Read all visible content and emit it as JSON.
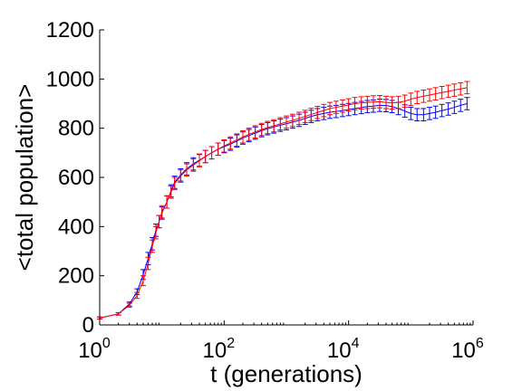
{
  "chart_data": {
    "type": "line",
    "xlabel": "t (generations)",
    "ylabel": "<total population>",
    "xscale": "log",
    "xlim_exponents": [
      0,
      6
    ],
    "ylim": [
      0,
      1200
    ],
    "x_ticks": [
      {
        "base": "10",
        "exp": "0",
        "value": 1
      },
      {
        "base": "10",
        "exp": "2",
        "value": 100
      },
      {
        "base": "10",
        "exp": "4",
        "value": 10000
      },
      {
        "base": "10",
        "exp": "6",
        "value": 1000000
      }
    ],
    "y_ticks": [
      {
        "label": "0",
        "value": 0
      },
      {
        "label": "200",
        "value": 200
      },
      {
        "label": "400",
        "value": 400
      },
      {
        "label": "600",
        "value": 600
      },
      {
        "label": "800",
        "value": 800
      },
      {
        "label": "1000",
        "value": 1000
      },
      {
        "label": "1200",
        "value": 1200
      }
    ],
    "grid": false,
    "legend": "none",
    "series": [
      {
        "color": "#0000ff",
        "x": [
          1,
          2,
          3,
          4,
          5,
          6,
          7,
          8,
          9,
          10,
          12,
          14,
          16,
          20,
          25,
          32,
          40,
          50,
          63,
          80,
          100,
          126,
          160,
          200,
          250,
          316,
          400,
          500,
          630,
          800,
          1000,
          1260,
          1600,
          2000,
          2500,
          3160,
          4000,
          5000,
          6300,
          8000,
          10000,
          12600,
          16000,
          20000,
          25000,
          31600,
          40000,
          50000,
          63000,
          80000,
          100000,
          126000,
          160000,
          200000,
          250000,
          316000,
          400000,
          500000,
          630000,
          800000
        ],
        "y": [
          28,
          45,
          85,
          135,
          205,
          270,
          330,
          385,
          420,
          455,
          500,
          545,
          580,
          610,
          635,
          655,
          670,
          685,
          700,
          715,
          725,
          735,
          748,
          760,
          770,
          780,
          790,
          798,
          805,
          812,
          818,
          825,
          832,
          840,
          848,
          855,
          860,
          865,
          868,
          872,
          876,
          880,
          884,
          888,
          890,
          893,
          892,
          888,
          880,
          870,
          860,
          855,
          855,
          860,
          865,
          872,
          878,
          885,
          893,
          900
        ],
        "err": [
          4,
          5,
          8,
          12,
          20,
          25,
          25,
          25,
          25,
          25,
          25,
          25,
          25,
          25,
          25,
          25,
          25,
          25,
          25,
          25,
          25,
          25,
          25,
          25,
          25,
          25,
          25,
          25,
          25,
          25,
          25,
          25,
          25,
          25,
          25,
          25,
          25,
          25,
          25,
          25,
          25,
          25,
          25,
          25,
          25,
          25,
          25,
          25,
          25,
          25,
          25,
          25,
          25,
          25,
          25,
          25,
          25,
          25,
          25,
          25
        ]
      },
      {
        "color": "#ff0000",
        "x": [
          1,
          2,
          3,
          4,
          5,
          6,
          7,
          8,
          9,
          10,
          12,
          14,
          16,
          20,
          25,
          32,
          40,
          50,
          63,
          80,
          100,
          126,
          160,
          200,
          250,
          316,
          400,
          500,
          630,
          800,
          1000,
          1260,
          1600,
          2000,
          2500,
          3160,
          4000,
          5000,
          6300,
          8000,
          10000,
          12600,
          16000,
          20000,
          25000,
          31600,
          40000,
          50000,
          63000,
          80000,
          100000,
          126000,
          160000,
          200000,
          250000,
          316000,
          400000,
          500000,
          630000,
          800000
        ],
        "y": [
          28,
          45,
          80,
          120,
          180,
          250,
          320,
          375,
          420,
          460,
          500,
          540,
          575,
          605,
          630,
          650,
          668,
          685,
          700,
          715,
          728,
          740,
          752,
          765,
          775,
          785,
          795,
          803,
          810,
          818,
          825,
          832,
          840,
          848,
          856,
          864,
          872,
          880,
          885,
          890,
          895,
          900,
          903,
          905,
          907,
          908,
          905,
          903,
          905,
          910,
          918,
          925,
          930,
          935,
          940,
          945,
          950,
          955,
          960,
          965
        ],
        "err": [
          4,
          5,
          8,
          12,
          20,
          25,
          25,
          25,
          25,
          25,
          25,
          25,
          25,
          25,
          25,
          25,
          25,
          25,
          25,
          25,
          25,
          25,
          25,
          25,
          25,
          25,
          25,
          25,
          25,
          25,
          25,
          25,
          25,
          25,
          25,
          25,
          25,
          25,
          25,
          25,
          25,
          25,
          25,
          25,
          25,
          25,
          25,
          25,
          25,
          25,
          25,
          25,
          25,
          25,
          25,
          25,
          25,
          25,
          25,
          25
        ]
      }
    ]
  }
}
